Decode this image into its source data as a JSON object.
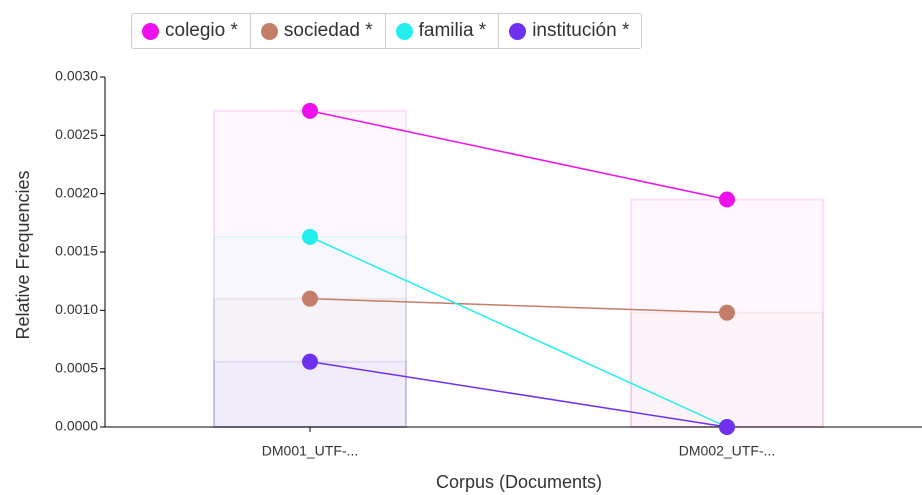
{
  "chart_data": {
    "type": "line",
    "x_axis_label": "Corpus (Documents)",
    "y_axis_label": "Relative Frequencies",
    "categories": [
      "DM001_UTF-...",
      "DM002_UTF-..."
    ],
    "series": [
      {
        "name": "colegio *",
        "color": "#ee11ee",
        "values": [
          0.00271,
          0.00195
        ]
      },
      {
        "name": "sociedad *",
        "color": "#c47d68",
        "values": [
          0.0011,
          0.00098
        ]
      },
      {
        "name": "familia *",
        "color": "#22eeee",
        "values": [
          0.00163,
          0
        ]
      },
      {
        "name": "institución *",
        "color": "#7030f0",
        "values": [
          0.00056,
          0
        ]
      }
    ],
    "ylim": [
      0,
      0.003
    ],
    "yticks": [
      {
        "value": 0,
        "label": "0.0000"
      },
      {
        "value": 0.0005,
        "label": "0.0005"
      },
      {
        "value": 0.001,
        "label": "0.0010"
      },
      {
        "value": 0.0015,
        "label": "0.0015"
      },
      {
        "value": 0.002,
        "label": "0.0020"
      },
      {
        "value": 0.0025,
        "label": "0.0025"
      },
      {
        "value": 0.003,
        "label": "0.0030"
      }
    ]
  }
}
